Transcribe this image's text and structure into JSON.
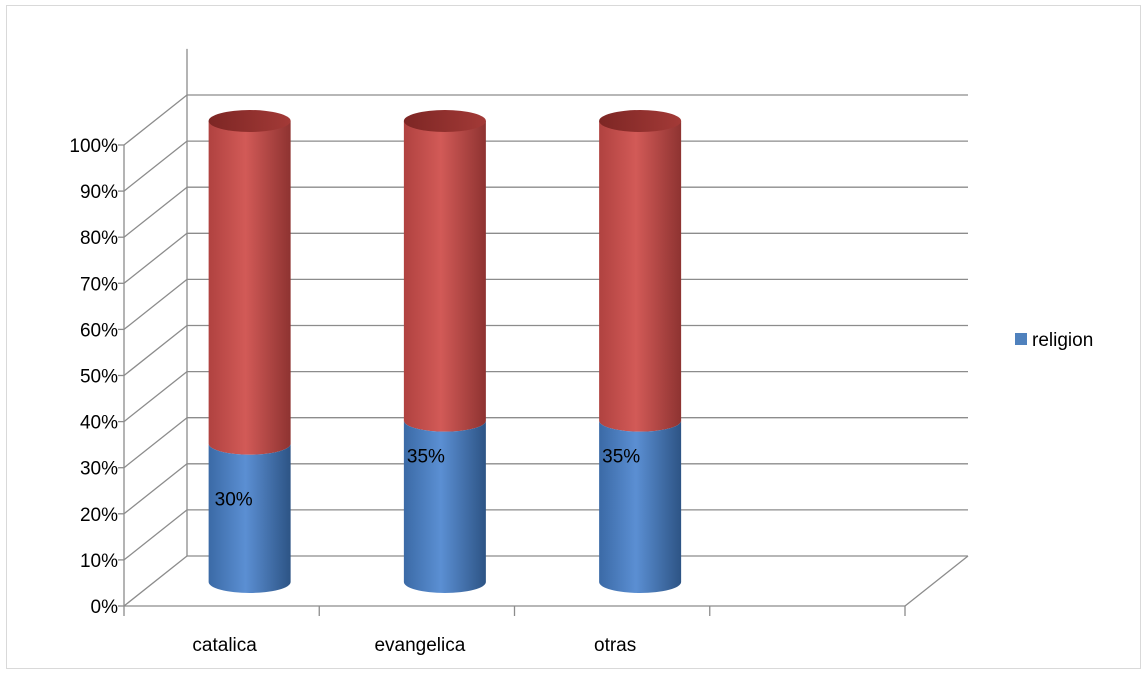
{
  "chart_data": {
    "type": "bar",
    "subtype": "stacked-100-cylinder",
    "categories": [
      "catalica",
      "evangelica",
      "otras"
    ],
    "series": [
      {
        "name": "religion",
        "values": [
          30,
          35,
          35
        ],
        "data_labels": [
          "30%",
          "35%",
          "35%"
        ],
        "color": "#4f81bd"
      },
      {
        "values": [
          70,
          65,
          65
        ],
        "color": "#c0504d"
      }
    ],
    "ylim": [
      0,
      100
    ],
    "y_ticks": [
      "0%",
      "10%",
      "20%",
      "30%",
      "40%",
      "50%",
      "60%",
      "70%",
      "80%",
      "90%",
      "100%"
    ],
    "grid": true,
    "legend": {
      "position": "right",
      "entries": [
        "religion"
      ]
    },
    "empty_category_slots": 1,
    "title": "",
    "xlabel": "",
    "ylabel": ""
  }
}
